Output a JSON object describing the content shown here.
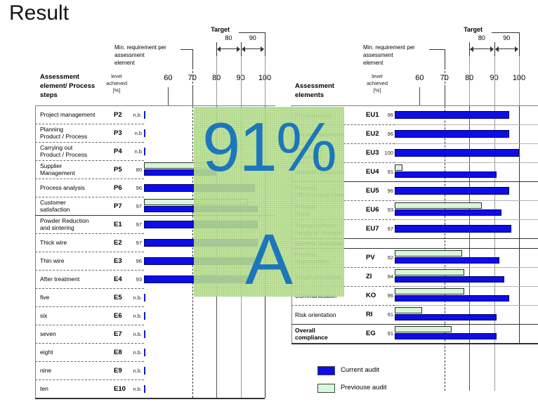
{
  "title": "Result",
  "overlay": {
    "score": "91%",
    "grade": "A"
  },
  "legend": {
    "current": "Current audit",
    "previous": "Previouse audit"
  },
  "colors": {
    "current_audit": "#0d0de8",
    "previous_audit": "#d8f6d8",
    "overlay_bg": "#bce096",
    "overlay_text": "#1c76bc"
  },
  "chart_data": [
    {
      "type": "bar",
      "orientation": "horizontal",
      "title_lines": [
        "Assessment",
        "element/ Process",
        "steps"
      ],
      "level_label_lines": [
        "level",
        "achieved",
        "[%]"
      ],
      "min_requirement_label_lines": [
        "Min. requirement per",
        "assessment",
        "element"
      ],
      "target_label": "Target",
      "target_band_labels": [
        "80",
        "90"
      ],
      "x_ticks": [
        60,
        70,
        80,
        90,
        100
      ],
      "xlim": [
        50,
        100
      ],
      "min_requirement": 70,
      "series_names": [
        "Current audit",
        "Previouse audit"
      ],
      "rows": [
        {
          "label": "Project management",
          "code": "P2",
          "value": "n.b.",
          "current": null,
          "previous": null
        },
        {
          "label": "Planning\nProduct / Process",
          "code": "P3",
          "value": "n.b",
          "current": null,
          "previous": null
        },
        {
          "label": "Carrying out\nProduct / Process",
          "code": "P4",
          "value": "n.b",
          "current": null,
          "previous": null
        },
        {
          "label": "Supplier\nManagement",
          "code": "P5",
          "value": "80",
          "current": 80,
          "previous": 81
        },
        {
          "label": "Process analysis",
          "code": "P6",
          "value": "96",
          "current": 96,
          "previous": null
        },
        {
          "label": "Customer\nsatisfaction",
          "code": "P7",
          "value": "97",
          "current": 97,
          "previous": 93
        },
        {
          "label": "Powder Reduction\nand sintering",
          "code": "E1",
          "value": "97",
          "current": 97,
          "previous": null
        },
        {
          "label": "Thick wire",
          "code": "E2",
          "value": "97",
          "current": 97,
          "previous": null
        },
        {
          "label": "Thin wire",
          "code": "E3",
          "value": "96",
          "current": 96,
          "previous": null
        },
        {
          "label": "After treatment",
          "code": "E4",
          "value": "93",
          "current": 93,
          "previous": null
        },
        {
          "label": "five",
          "code": "E5",
          "value": "n.b.",
          "current": null,
          "previous": null
        },
        {
          "label": "six",
          "code": "E6",
          "value": "n.b.",
          "current": null,
          "previous": null
        },
        {
          "label": "seven",
          "code": "E7",
          "value": "n.b.",
          "current": null,
          "previous": null
        },
        {
          "label": "eight",
          "code": "E8",
          "value": "n.b.",
          "current": null,
          "previous": null
        },
        {
          "label": "nine",
          "code": "E9",
          "value": "n.b.",
          "current": null,
          "previous": null
        },
        {
          "label": "ten",
          "code": "E10",
          "value": "n.b.",
          "current": null,
          "previous": null
        }
      ]
    },
    {
      "type": "bar",
      "orientation": "horizontal",
      "title_lines": [
        "Assessment",
        "elements"
      ],
      "level_label_lines": [
        "level",
        "achieved",
        "[%]"
      ],
      "min_requirement_label_lines": [
        "Min. requirement per",
        "assessment",
        "element"
      ],
      "target_label": "Target",
      "target_band_labels": [
        "80",
        "90"
      ],
      "x_ticks": [
        60,
        70,
        80,
        90,
        100
      ],
      "xlim": [
        50,
        100
      ],
      "min_requirement": 70,
      "series_names": [
        "Current audit",
        "Previouse audit"
      ],
      "rows": [
        {
          "label": "Process input",
          "code": "EU1",
          "value": "96",
          "current": 96,
          "previous": null
        },
        {
          "label": "Process sequence",
          "code": "EU2",
          "value": "96",
          "current": 96,
          "previous": null
        },
        {
          "label": "Personnel\nresources",
          "code": "EU3",
          "value": "100",
          "current": 100,
          "previous": null
        },
        {
          "label": "Material resources",
          "code": "EU4",
          "value": "91",
          "current": 91,
          "previous": 53
        },
        {
          "label": "Process\neffectiveness level",
          "code": "EU5",
          "value": "96",
          "current": 96,
          "previous": null
        },
        {
          "label": "Process\nresult",
          "code": "EU6",
          "value": "93",
          "current": 93,
          "previous": 85
        },
        {
          "label": "Transport/Parts-\nhandling/ Storage",
          "code": "EU7",
          "value": "97",
          "current": 97,
          "previous": null
        },
        {
          "section": "Generic baseline"
        },
        {
          "label": "Process\nresponsibility",
          "code": "PV",
          "value": "92",
          "current": 92,
          "previous": 77
        },
        {
          "label": "Target orientation",
          "code": "ZI",
          "value": "94",
          "current": 94,
          "previous": 78
        },
        {
          "label": "Communication",
          "code": "KO",
          "value": "96",
          "current": 96,
          "previous": 78
        },
        {
          "label": "Risk orientation",
          "code": "RI",
          "value": "91",
          "current": 91,
          "previous": 61
        },
        {
          "label": "Overall\ncompliance",
          "code": "EG",
          "value": "91",
          "current": 91,
          "previous": 73,
          "bold": true
        }
      ]
    }
  ]
}
